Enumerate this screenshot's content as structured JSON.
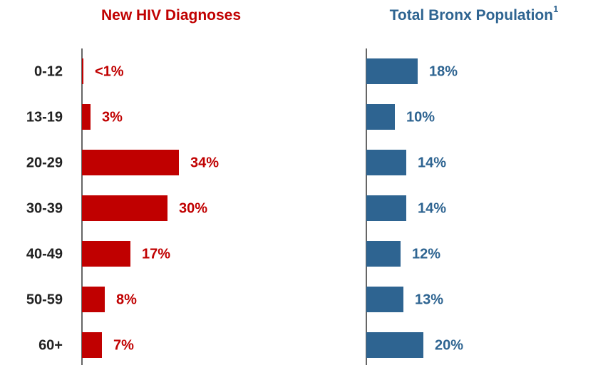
{
  "chart_data": [
    {
      "type": "bar",
      "orientation": "horizontal",
      "title": "New HIV Diagnoses",
      "categories": [
        "0-12",
        "13-19",
        "20-29",
        "30-39",
        "40-49",
        "50-59",
        "60+"
      ],
      "values": [
        0.5,
        3,
        34,
        30,
        17,
        8,
        7
      ],
      "value_labels": [
        "<1%",
        "3%",
        "34%",
        "30%",
        "17%",
        "8%",
        "7%"
      ],
      "color": "#c00000",
      "xlim": [
        0,
        50
      ]
    },
    {
      "type": "bar",
      "orientation": "horizontal",
      "title": "Total Bronx Population",
      "title_note": "1",
      "values": [
        18,
        10,
        14,
        14,
        12,
        13,
        20
      ],
      "value_labels": [
        "18%",
        "10%",
        "14%",
        "14%",
        "12%",
        "13%",
        "20%"
      ],
      "color": "#2e6491",
      "xlim": [
        0,
        50
      ]
    }
  ]
}
